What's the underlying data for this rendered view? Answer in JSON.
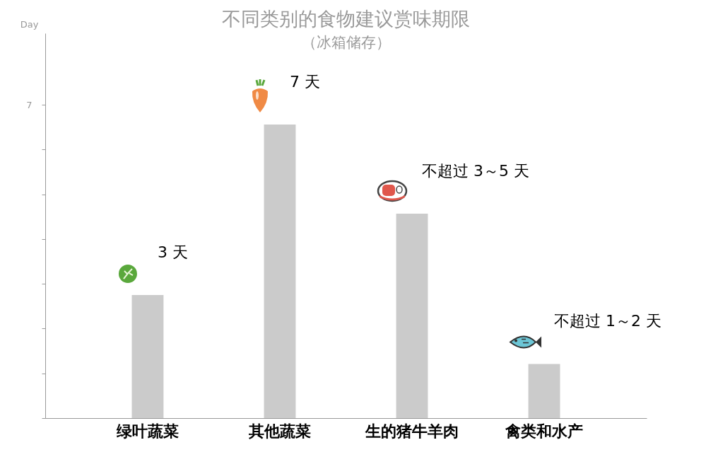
{
  "chart_data": {
    "type": "bar",
    "title": "不同类别的食物建议赏味期限",
    "subtitle": "（冰箱储存）",
    "ylabel": "Day",
    "categories": [
      "绿叶蔬菜",
      "其他蔬菜",
      "生的猪牛羊肉",
      "禽类和水产"
    ],
    "values": [
      2.75,
      6.56,
      4.57,
      1.21
    ],
    "color": "#cbcbcb",
    "ylim": [
      0,
      8.6
    ],
    "yticks": [
      {
        "value": 0,
        "label": null
      },
      {
        "value": 1,
        "label": null
      },
      {
        "value": 2,
        "label": null
      },
      {
        "value": 3,
        "label": null
      },
      {
        "value": 4,
        "label": null
      },
      {
        "value": 5,
        "label": null
      },
      {
        "value": 6,
        "label": null
      },
      7
    ],
    "annotations": [
      "3 天",
      "7 天",
      "不超过 3～5 天",
      "不超过 1～2 天"
    ],
    "grid": false
  }
}
